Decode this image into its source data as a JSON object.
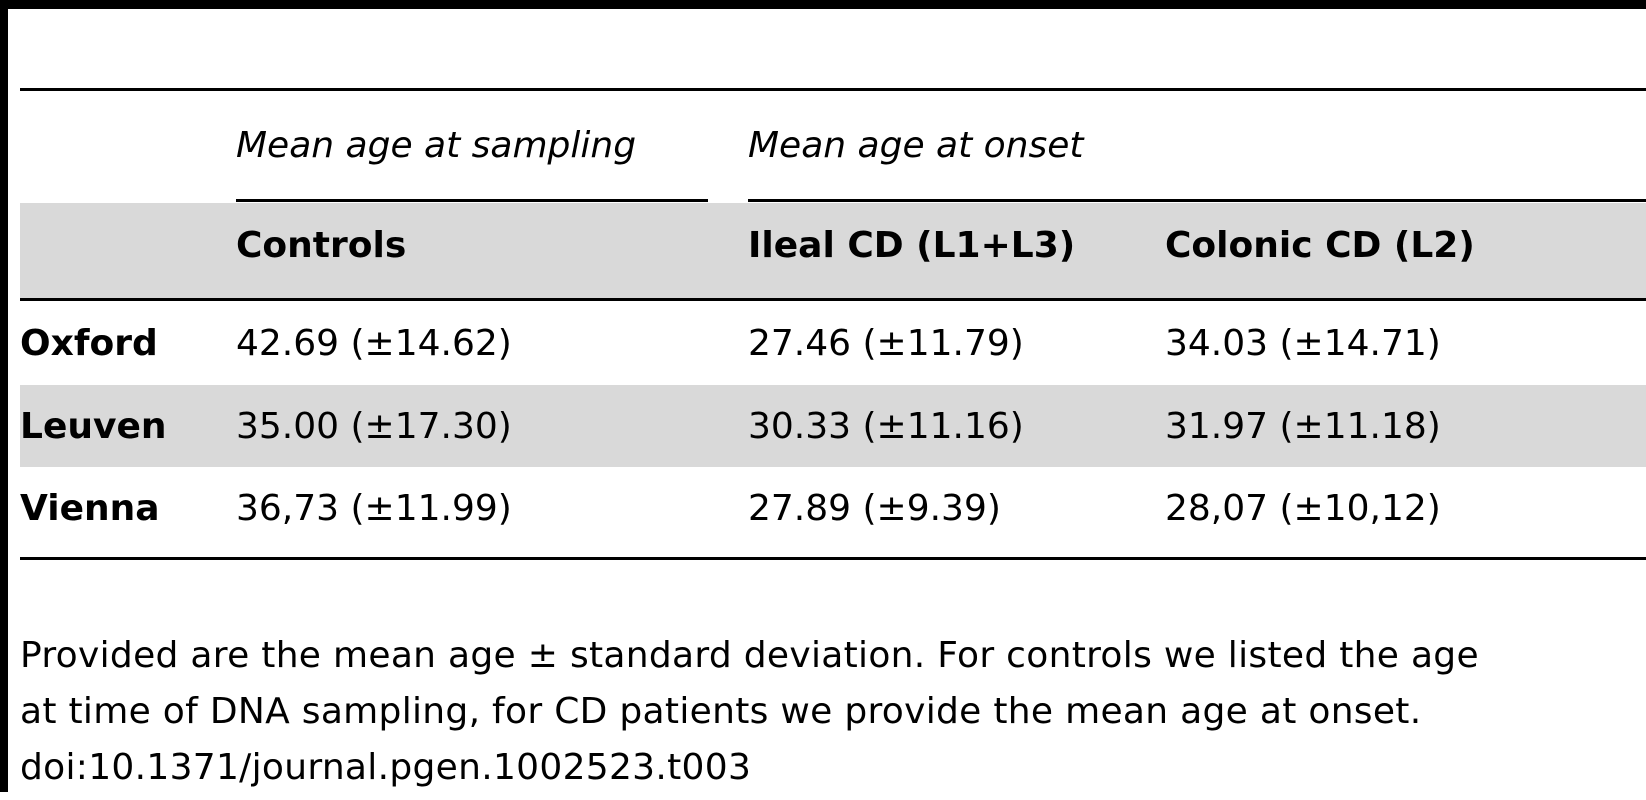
{
  "table": {
    "group_headers": {
      "sampling": "Mean age at sampling",
      "onset": "Mean age at onset"
    },
    "columns": {
      "controls": "Controls",
      "ileal": "Ileal CD (L1+L3)",
      "colonic": "Colonic CD (L2)"
    },
    "rows": [
      {
        "label": "Oxford",
        "controls": "42.69 (±14.62)",
        "ileal": "27.46 (±11.79)",
        "colonic": "34.03 (±14.71)"
      },
      {
        "label": "Leuven",
        "controls": "35.00 (±17.30)",
        "ileal": "30.33 (±11.16)",
        "colonic": "31.97 (±11.18)"
      },
      {
        "label": "Vienna",
        "controls": "36,73 (±11.99)",
        "ileal": "27.89 (±9.39)",
        "colonic": "28,07 (±10,12)"
      }
    ]
  },
  "footnote": {
    "line1": "Provided are the mean age ± standard deviation. For controls we listed the age",
    "line2": "at time of DNA sampling, for CD patients we provide the mean age at onset.",
    "doi": "doi:10.1371/journal.pgen.1002523.t003"
  }
}
